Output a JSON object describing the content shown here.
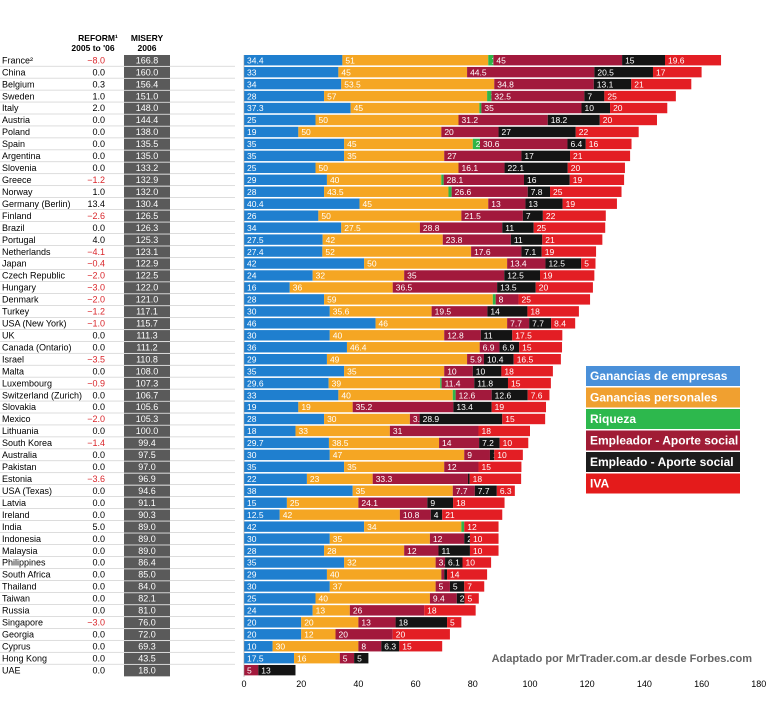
{
  "chart_data": {
    "type": "bar",
    "orientation": "horizontal",
    "stacked": true,
    "headers": {
      "reform_line1": "REFORM¹",
      "reform_line2": "2005 to '06",
      "misery_line1": "MISERY",
      "misery_line2": "2006"
    },
    "legend": [
      {
        "name": "Ganancias de empresas",
        "color": "#4a90d9"
      },
      {
        "name": "Ganancias personales",
        "color": "#f0a030"
      },
      {
        "name": "Riqueza",
        "color": "#2db84d"
      },
      {
        "name": "Empleador - Aporte social",
        "color": "#a01c35"
      },
      {
        "name": "Empleado - Aporte social",
        "color": "#1c1c1c"
      },
      {
        "name": "IVA",
        "color": "#e41b1b"
      }
    ],
    "segment_colors": [
      "#1f7fcf",
      "#f5a623",
      "#2fb548",
      "#a2193c",
      "#141414",
      "#e31e24"
    ],
    "xlim": [
      0,
      180
    ],
    "xticks": [
      "0",
      "20",
      "40",
      "60",
      "80",
      "100",
      "120",
      "140",
      "160",
      "180"
    ],
    "credit": "Adaptado por MrTrader.com.ar desde Forbes.com",
    "rows": [
      {
        "country": "France²",
        "reform": "−8.0",
        "misery": "166.8",
        "segments": [
          34.4,
          51,
          1.8,
          45,
          15,
          19.6
        ],
        "labels": [
          "34.4",
          "51",
          "1.8",
          "45",
          "15",
          "19.6"
        ]
      },
      {
        "country": "China",
        "reform": "0.0",
        "misery": "160.0",
        "segments": [
          33,
          45,
          0,
          44.5,
          20.5,
          17
        ],
        "labels": [
          "33",
          "45",
          "",
          "44.5",
          "20.5",
          "17"
        ]
      },
      {
        "country": "Belgium",
        "reform": "0.3",
        "misery": "156.4",
        "segments": [
          34,
          53.5,
          0,
          34.8,
          13.1,
          21
        ],
        "labels": [
          "34",
          "53.5",
          "",
          "34.8",
          "13.1",
          "21"
        ]
      },
      {
        "country": "Sweden",
        "reform": "1.0",
        "misery": "151.0",
        "segments": [
          28,
          57,
          1.5,
          32.5,
          7,
          25
        ],
        "labels": [
          "28",
          "57",
          "1.5",
          "32.5",
          "7",
          "25"
        ]
      },
      {
        "country": "Italy",
        "reform": "2.0",
        "misery": "148.0",
        "segments": [
          37.3,
          45,
          0.7,
          35,
          10,
          20
        ],
        "labels": [
          "37.3",
          "45",
          "0.7",
          "35",
          "10",
          "20"
        ]
      },
      {
        "country": "Austria",
        "reform": "0.0",
        "misery": "144.4",
        "segments": [
          25,
          50,
          0,
          31.2,
          18.2,
          20
        ],
        "labels": [
          "25",
          "50",
          "",
          "31.2",
          "18.2",
          "20"
        ]
      },
      {
        "country": "Poland",
        "reform": "0.0",
        "misery": "138.0",
        "segments": [
          19,
          50,
          0,
          20,
          27,
          22
        ],
        "labels": [
          "19",
          "50",
          "",
          "20",
          "27",
          "22"
        ]
      },
      {
        "country": "Spain",
        "reform": "0.0",
        "misery": "135.5",
        "segments": [
          35,
          45,
          2.5,
          30.6,
          6.4,
          16
        ],
        "labels": [
          "35",
          "45",
          "2.5",
          "30.6",
          "6.4",
          "16"
        ]
      },
      {
        "country": "Argentina",
        "reform": "0.0",
        "misery": "135.0",
        "segments": [
          35,
          35,
          0,
          27,
          17,
          21
        ],
        "labels": [
          "35",
          "35",
          "",
          "27",
          "17",
          "21"
        ]
      },
      {
        "country": "Slovenia",
        "reform": "0.0",
        "misery": "133.2",
        "segments": [
          25,
          50,
          0,
          16.1,
          22.1,
          20
        ],
        "labels": [
          "25",
          "50",
          "",
          "16.1",
          "22.1",
          "20"
        ]
      },
      {
        "country": "Greece",
        "reform": "−1.2",
        "misery": "132.9",
        "segments": [
          29,
          40,
          0.8,
          28.1,
          16,
          19
        ],
        "labels": [
          "29",
          "40",
          "0.8",
          "28.1",
          "16",
          "19"
        ]
      },
      {
        "country": "Norway",
        "reform": "1.0",
        "misery": "132.0",
        "segments": [
          28,
          43.5,
          1.1,
          26.6,
          7.8,
          25
        ],
        "labels": [
          "28",
          "43.5",
          "1.1",
          "26.6",
          "7.8",
          "25"
        ]
      },
      {
        "country": "Germany (Berlin)",
        "reform": "13.4",
        "misery": "130.4",
        "segments": [
          40.4,
          45,
          0,
          13,
          13,
          19
        ],
        "labels": [
          "40.4",
          "45",
          "",
          "13",
          "13",
          "19"
        ]
      },
      {
        "country": "Finland",
        "reform": "−2.6",
        "misery": "126.5",
        "segments": [
          26,
          50,
          0,
          21.5,
          7,
          22
        ],
        "labels": [
          "26",
          "50",
          "",
          "21.5",
          "7",
          "22"
        ]
      },
      {
        "country": "Brazil",
        "reform": "0.0",
        "misery": "126.3",
        "segments": [
          34,
          27.5,
          0,
          28.8,
          11,
          25
        ],
        "labels": [
          "34",
          "27.5",
          "",
          "28.8",
          "11",
          "25"
        ]
      },
      {
        "country": "Portugal",
        "reform": "4.0",
        "misery": "125.3",
        "segments": [
          27.5,
          42,
          0,
          23.8,
          11,
          21
        ],
        "labels": [
          "27.5",
          "42",
          "",
          "23.8",
          "11",
          "21"
        ]
      },
      {
        "country": "Netherlands",
        "reform": "−4.1",
        "misery": "123.1",
        "segments": [
          27.4,
          52,
          0,
          17.6,
          7.1,
          19
        ],
        "labels": [
          "27.4",
          "52",
          "",
          "17.6",
          "7.1",
          "19"
        ]
      },
      {
        "country": "Japan",
        "reform": "−0.4",
        "misery": "122.9",
        "segments": [
          42,
          50,
          0,
          13.4,
          12.5,
          5
        ],
        "labels": [
          "42",
          "50",
          "",
          "13.4",
          "12.5",
          "5"
        ]
      },
      {
        "country": "Czech Republic",
        "reform": "−2.0",
        "misery": "122.5",
        "segments": [
          24,
          32,
          0,
          35,
          12.5,
          19
        ],
        "labels": [
          "24",
          "32",
          "",
          "35",
          "12.5",
          "19"
        ]
      },
      {
        "country": "Hungary",
        "reform": "−3.0",
        "misery": "122.0",
        "segments": [
          16,
          36,
          0,
          36.5,
          13.5,
          20
        ],
        "labels": [
          "16",
          "36",
          "",
          "36.5",
          "13.5",
          "20"
        ]
      },
      {
        "country": "Denmark",
        "reform": "−2.0",
        "misery": "121.0",
        "segments": [
          28,
          59,
          1,
          8,
          0,
          25
        ],
        "labels": [
          "28",
          "59",
          "1",
          "8",
          "",
          "25"
        ]
      },
      {
        "country": "Turkey",
        "reform": "−1.2",
        "misery": "117.1",
        "segments": [
          30,
          35.6,
          0,
          19.5,
          14,
          18
        ],
        "labels": [
          "30",
          "35.6",
          "",
          "19.5",
          "14",
          "18"
        ]
      },
      {
        "country": "USA (New York)",
        "reform": "−1.0",
        "misery": "115.7",
        "segments": [
          46,
          46,
          0,
          7.7,
          7.7,
          8.4
        ],
        "labels": [
          "46",
          "46",
          "",
          "7.7",
          "7.7",
          "8.4"
        ]
      },
      {
        "country": "UK",
        "reform": "0.0",
        "misery": "111.3",
        "segments": [
          30,
          40,
          0,
          12.8,
          11,
          17.5
        ],
        "labels": [
          "30",
          "40",
          "",
          "12.8",
          "11",
          "17.5"
        ]
      },
      {
        "country": "Canada (Ontario)",
        "reform": "0.0",
        "misery": "111.2",
        "segments": [
          36,
          46.4,
          0,
          6.9,
          6.9,
          15
        ],
        "labels": [
          "36",
          "46.4",
          "",
          "6.9",
          "6.9",
          "15"
        ]
      },
      {
        "country": "Israel",
        "reform": "−3.5",
        "misery": "110.8",
        "segments": [
          29,
          49,
          0,
          5.9,
          10.4,
          16.5
        ],
        "labels": [
          "29",
          "49",
          "",
          "5.9",
          "10.4",
          "16.5"
        ]
      },
      {
        "country": "Malta",
        "reform": "0.0",
        "misery": "108.0",
        "segments": [
          35,
          35,
          0,
          10,
          10,
          18
        ],
        "labels": [
          "35",
          "35",
          "",
          "10",
          "10",
          "18"
        ]
      },
      {
        "country": "Luxembourg",
        "reform": "−0.9",
        "misery": "107.3",
        "segments": [
          29.6,
          39,
          0.5,
          11.4,
          11.8,
          15
        ],
        "labels": [
          "29.6",
          "39",
          "0.5",
          "11.4",
          "11.8",
          "15"
        ]
      },
      {
        "country": "Switzerland (Zurich)",
        "reform": "0.0",
        "misery": "106.7",
        "segments": [
          33,
          40,
          1,
          12.6,
          12.6,
          7.6
        ],
        "labels": [
          "33",
          "40",
          "1",
          "12.6",
          "12.6",
          "7.6"
        ]
      },
      {
        "country": "Slovakia",
        "reform": "0.0",
        "misery": "105.6",
        "segments": [
          19,
          19,
          0,
          35.2,
          13.4,
          19
        ],
        "labels": [
          "19",
          "19",
          "",
          "35.2",
          "13.4",
          "19"
        ]
      },
      {
        "country": "Mexico",
        "reform": "−2.0",
        "misery": "105.3",
        "segments": [
          28,
          30,
          0,
          3.4,
          28.9,
          15
        ],
        "labels": [
          "28",
          "30",
          "",
          "3.4",
          "28.9",
          "15"
        ]
      },
      {
        "country": "Lithuania",
        "reform": "0.0",
        "misery": "100.0",
        "segments": [
          18,
          33,
          0,
          31,
          0,
          18
        ],
        "labels": [
          "18",
          "33",
          "",
          "31",
          "",
          "18"
        ]
      },
      {
        "country": "South Korea",
        "reform": "−1.4",
        "misery": "99.4",
        "segments": [
          29.7,
          38.5,
          0,
          14,
          7.2,
          10
        ],
        "labels": [
          "29.7",
          "38.5",
          "",
          "14",
          "7.2",
          "10"
        ]
      },
      {
        "country": "Australia",
        "reform": "0.0",
        "misery": "97.5",
        "segments": [
          30,
          47,
          0,
          9,
          1.5,
          10
        ],
        "labels": [
          "30",
          "47",
          "",
          "9",
          "1.5",
          "10"
        ]
      },
      {
        "country": "Pakistan",
        "reform": "0.0",
        "misery": "97.0",
        "segments": [
          35,
          35,
          0,
          12,
          0,
          15
        ],
        "labels": [
          "35",
          "35",
          "",
          "12",
          "",
          "15"
        ]
      },
      {
        "country": "Estonia",
        "reform": "−3.6",
        "misery": "96.9",
        "segments": [
          22,
          23,
          0,
          33.3,
          0.6,
          18
        ],
        "labels": [
          "22",
          "23",
          "",
          "33.3",
          "0.6",
          "18"
        ]
      },
      {
        "country": "USA (Texas)",
        "reform": "0.0",
        "misery": "94.6",
        "segments": [
          38,
          35,
          0,
          7.7,
          7.7,
          6.3
        ],
        "labels": [
          "38",
          "35",
          "",
          "7.7",
          "7.7",
          "6.3"
        ]
      },
      {
        "country": "Latvia",
        "reform": "0.0",
        "misery": "91.1",
        "segments": [
          15,
          25,
          0,
          24.1,
          9,
          18
        ],
        "labels": [
          "15",
          "25",
          "",
          "24.1",
          "9",
          "18"
        ]
      },
      {
        "country": "Ireland",
        "reform": "0.0",
        "misery": "90.3",
        "segments": [
          12.5,
          42,
          0,
          10.8,
          4,
          21
        ],
        "labels": [
          "12.5",
          "42",
          "",
          "10.8",
          "4",
          "21"
        ]
      },
      {
        "country": "India",
        "reform": "5.0",
        "misery": "89.0",
        "segments": [
          42,
          34,
          1,
          0,
          0,
          12
        ],
        "labels": [
          "42",
          "34",
          "1",
          "",
          "",
          "12"
        ]
      },
      {
        "country": "Indonesia",
        "reform": "0.0",
        "misery": "89.0",
        "segments": [
          30,
          35,
          0,
          12,
          2,
          10
        ],
        "labels": [
          "30",
          "35",
          "",
          "12",
          "2",
          "10"
        ]
      },
      {
        "country": "Malaysia",
        "reform": "0.0",
        "misery": "89.0",
        "segments": [
          28,
          28,
          0,
          12,
          11,
          10
        ],
        "labels": [
          "28",
          "28",
          "",
          "12",
          "11",
          "10"
        ]
      },
      {
        "country": "Philippines",
        "reform": "0.0",
        "misery": "86.4",
        "segments": [
          35,
          32,
          0,
          3.3,
          6.1,
          10
        ],
        "labels": [
          "35",
          "32",
          "",
          "3.3",
          "6.1",
          "10"
        ]
      },
      {
        "country": "South Africa",
        "reform": "0.0",
        "misery": "85.0",
        "segments": [
          29,
          40,
          0,
          1,
          1,
          14
        ],
        "labels": [
          "29",
          "40",
          "",
          "1",
          "1",
          "14"
        ]
      },
      {
        "country": "Thailand",
        "reform": "0.0",
        "misery": "84.0",
        "segments": [
          30,
          37,
          0,
          5,
          5,
          7
        ],
        "labels": [
          "30",
          "37",
          "",
          "5",
          "5",
          "7"
        ]
      },
      {
        "country": "Taiwan",
        "reform": "0.0",
        "misery": "82.1",
        "segments": [
          25,
          40,
          0,
          9.4,
          2.7,
          5
        ],
        "labels": [
          "25",
          "40",
          "",
          "9.4",
          "2.7",
          "5"
        ]
      },
      {
        "country": "Russia",
        "reform": "0.0",
        "misery": "81.0",
        "segments": [
          24,
          13,
          0,
          26,
          0,
          18
        ],
        "labels": [
          "24",
          "13",
          "",
          "26",
          "",
          "18"
        ]
      },
      {
        "country": "Singapore",
        "reform": "−3.0",
        "misery": "76.0",
        "segments": [
          20,
          20,
          0,
          13,
          18,
          5
        ],
        "labels": [
          "20",
          "20",
          "",
          "13",
          "18",
          "5"
        ]
      },
      {
        "country": "Georgia",
        "reform": "0.0",
        "misery": "72.0",
        "segments": [
          20,
          12,
          0,
          20,
          0,
          20
        ],
        "labels": [
          "20",
          "12",
          "",
          "20",
          "",
          "20"
        ]
      },
      {
        "country": "Cyprus",
        "reform": "0.0",
        "misery": "69.3",
        "segments": [
          10,
          30,
          0,
          8,
          6.3,
          15
        ],
        "labels": [
          "10",
          "30",
          "",
          "8",
          "6.3",
          "15"
        ]
      },
      {
        "country": "Hong Kong",
        "reform": "0.0",
        "misery": "43.5",
        "segments": [
          17.5,
          16,
          0,
          5,
          5,
          0
        ],
        "labels": [
          "17.5",
          "16",
          "",
          "5",
          "5",
          ""
        ]
      },
      {
        "country": "UAE",
        "reform": "0.0",
        "misery": "18.0",
        "segments": [
          0,
          0,
          0,
          5,
          13,
          0
        ],
        "labels": [
          "",
          "",
          "",
          "5",
          "13",
          ""
        ]
      }
    ]
  }
}
